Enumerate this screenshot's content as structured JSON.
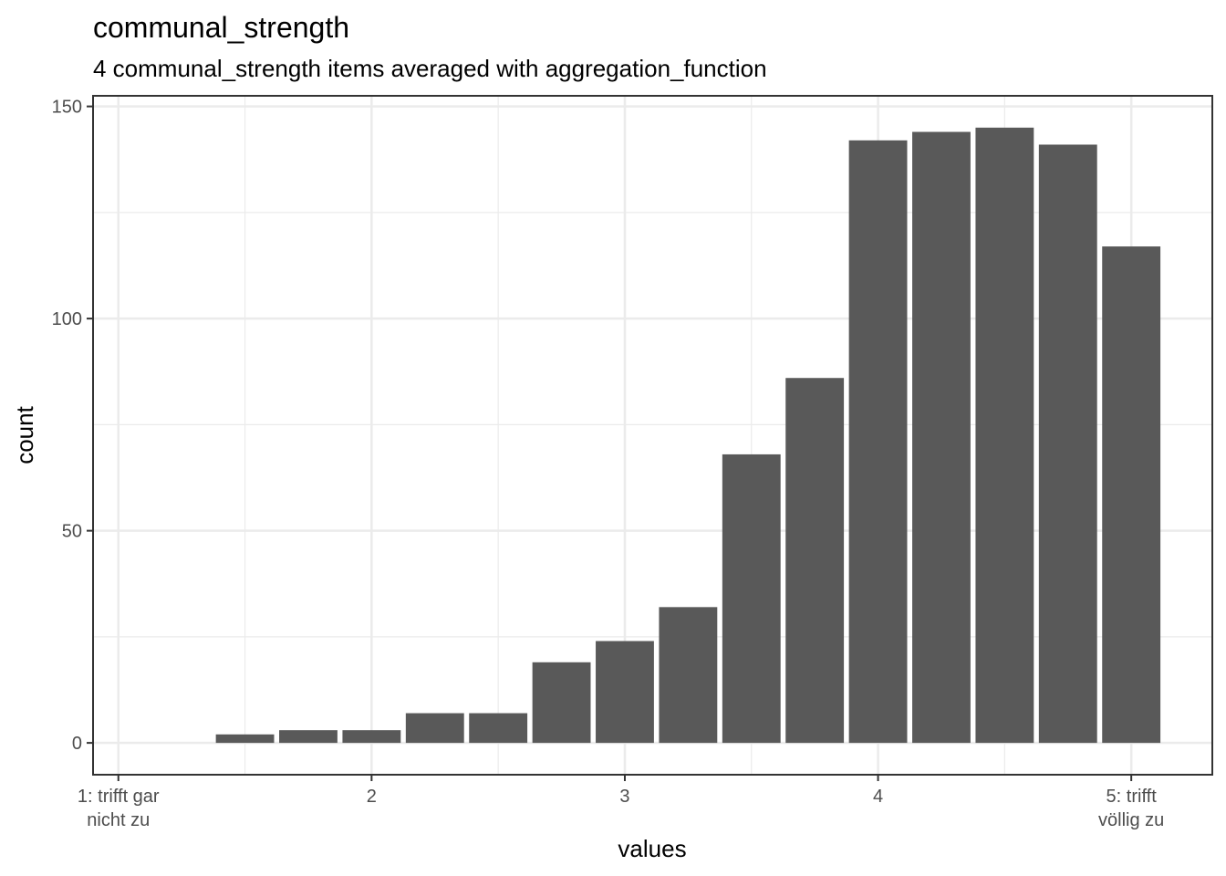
{
  "chart_data": {
    "type": "bar",
    "title": "communal_strength",
    "subtitle": "4 communal_strength items averaged with aggregation_function",
    "xlabel": "values",
    "ylabel": "count",
    "xlim": [
      0.9,
      5.32
    ],
    "ylim": [
      -7.5,
      152.5
    ],
    "x_ticks": [
      {
        "value": 1,
        "lines": [
          "1: trifft gar",
          "nicht zu"
        ]
      },
      {
        "value": 2,
        "lines": [
          "2"
        ]
      },
      {
        "value": 3,
        "lines": [
          "3"
        ]
      },
      {
        "value": 4,
        "lines": [
          "4"
        ]
      },
      {
        "value": 5,
        "lines": [
          "5: trifft",
          "völlig zu"
        ]
      }
    ],
    "y_ticks": [
      0,
      50,
      100,
      150
    ],
    "y_minor_ticks": [
      25,
      75,
      125
    ],
    "x_minor_ticks": [
      1.5,
      2.5,
      3.5,
      4.5
    ],
    "bar_width": 0.23,
    "x": [
      1.5,
      1.75,
      2.0,
      2.25,
      2.5,
      2.75,
      3.0,
      3.25,
      3.5,
      3.75,
      4.0,
      4.25,
      4.5,
      4.75,
      5.0
    ],
    "values": [
      2,
      3,
      3,
      7,
      7,
      19,
      24,
      32,
      68,
      86,
      142,
      144,
      145,
      141,
      117
    ],
    "colors": {
      "bar": "#595959",
      "grid": "#ebebeb",
      "panel_border": "#333333",
      "tick_text": "#4d4d4d"
    },
    "grid": true
  }
}
